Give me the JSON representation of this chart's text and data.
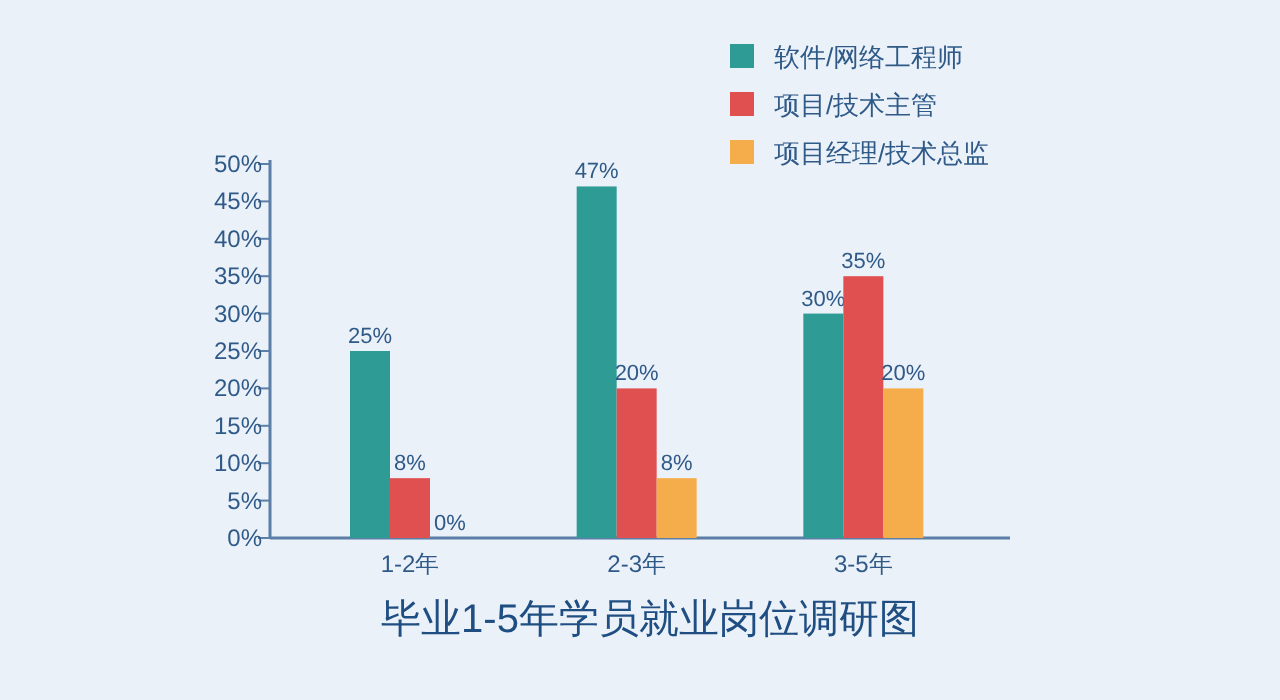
{
  "chart_data": {
    "type": "bar",
    "title": "毕业1-5年学员就业岗位调研图",
    "categories": [
      "1-2年",
      "2-3年",
      "3-5年"
    ],
    "series": [
      {
        "name": "软件/网络工程师",
        "color": "#2e9b95",
        "values": [
          25,
          47,
          30
        ]
      },
      {
        "name": "项目/技术主管",
        "color": "#e05050",
        "values": [
          8,
          20,
          35
        ]
      },
      {
        "name": "项目经理/技术总监",
        "color": "#f5ac4a",
        "values": [
          0,
          8,
          20
        ]
      }
    ],
    "ylim": [
      0,
      50
    ],
    "yticks": [
      {
        "value": 0,
        "label": "0%"
      },
      {
        "value": 5,
        "label": "5%"
      },
      {
        "value": 10,
        "label": "10%"
      },
      {
        "value": 15,
        "label": "15%"
      },
      {
        "value": 20,
        "label": "20%"
      },
      {
        "value": 25,
        "label": "25%"
      },
      {
        "value": 30,
        "label": "30%"
      },
      {
        "value": 35,
        "label": "35%"
      },
      {
        "value": 40,
        "label": "40%"
      },
      {
        "value": 45,
        "label": "45%"
      },
      {
        "value": 50,
        "label": "50%"
      }
    ],
    "value_labels": [
      [
        "25%",
        "47%",
        "30%"
      ],
      [
        "8%",
        "20%",
        "35%"
      ],
      [
        "0%",
        "8%",
        "20%"
      ]
    ],
    "grid": false,
    "legend": "top right"
  }
}
